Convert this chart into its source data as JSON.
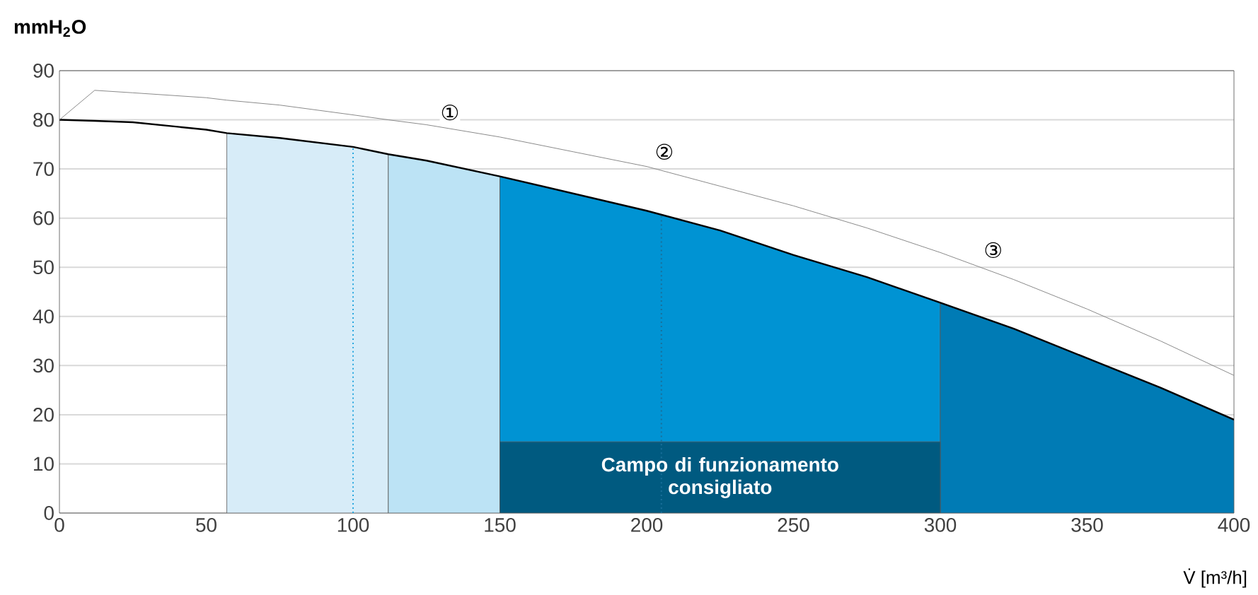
{
  "chart_data": {
    "type": "line",
    "ylabel": "mmH$_{2}$O",
    "xlabel": "V̇ [m³/h]",
    "xlim": [
      0,
      400
    ],
    "ylim": [
      0,
      90
    ],
    "xticks": [
      0,
      50,
      100,
      150,
      200,
      250,
      300,
      350,
      400
    ],
    "yticks": [
      0,
      10,
      20,
      30,
      40,
      50,
      60,
      70,
      80,
      90
    ],
    "grid": "y",
    "series": [
      {
        "type": "area",
        "color": "#d7ecf8",
        "x": [
          57,
          75,
          100,
          112
        ],
        "values": [
          77.3,
          76.3,
          74.5,
          73
        ]
      },
      {
        "type": "area",
        "color": "#bce3f5",
        "x": [
          112,
          125,
          150
        ],
        "values": [
          73,
          71.7,
          68.5
        ]
      },
      {
        "type": "area",
        "color": "#0093d3",
        "x": [
          150,
          175,
          200,
          225,
          250,
          275,
          300
        ],
        "values": [
          68.5,
          65,
          61.5,
          57.5,
          52.5,
          48,
          42.8
        ]
      },
      {
        "type": "area",
        "color": "#007bb5",
        "x": [
          300,
          325,
          350,
          375,
          400
        ],
        "values": [
          42.8,
          37.5,
          31.5,
          25.5,
          19
        ]
      },
      {
        "type": "area",
        "color": "#005a80",
        "x": [
          150,
          300
        ],
        "values": [
          14.5,
          14.5
        ]
      },
      {
        "color": "#000000",
        "x": [
          0,
          12,
          25,
          50,
          57,
          75,
          100,
          112,
          125,
          150,
          175,
          200,
          225,
          250,
          275,
          300,
          325,
          350,
          375,
          400
        ],
        "values": [
          80,
          79.8,
          79.5,
          78,
          77.3,
          76.3,
          74.5,
          73,
          71.7,
          68.5,
          65,
          61.5,
          57.5,
          52.5,
          48,
          42.8,
          37.5,
          31.5,
          25.5,
          19
        ]
      },
      {
        "color": "#8a8a8a",
        "x": [
          0,
          12,
          25,
          50,
          57,
          75,
          100,
          112,
          125,
          150,
          175,
          200,
          225,
          250,
          275,
          300,
          325,
          350,
          375,
          400
        ],
        "values": [
          80,
          86,
          85.5,
          84.5,
          84,
          83,
          81,
          80,
          79,
          76.5,
          73.5,
          70.5,
          66.5,
          62.5,
          58,
          53,
          47.5,
          41.5,
          35,
          28
        ]
      }
    ],
    "ref_lines": [
      {
        "axis": "x",
        "value": 100,
        "color": "#29a8e0",
        "line_style": "dotted"
      },
      {
        "axis": "x",
        "value": 205,
        "color": "#1a6f9a",
        "line_style": "dotted"
      }
    ],
    "annotations": [
      "Campo di funzionamento consigliato",
      {
        "text": "①",
        "x": 133,
        "y": 81.5
      },
      {
        "text": "②",
        "x": 206,
        "y": 73.5
      },
      {
        "text": "③",
        "x": 318,
        "y": 53.5
      }
    ]
  }
}
